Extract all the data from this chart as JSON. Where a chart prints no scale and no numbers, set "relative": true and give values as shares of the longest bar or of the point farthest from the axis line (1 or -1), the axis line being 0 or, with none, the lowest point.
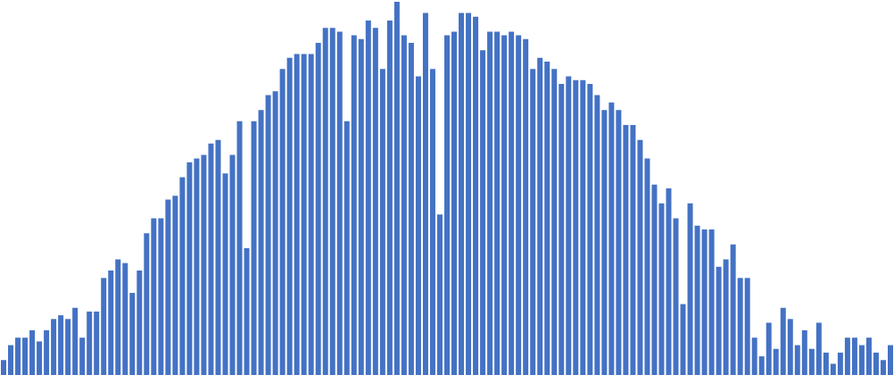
{
  "chart_data": {
    "type": "bar",
    "relative": true,
    "color": "#4472c4",
    "categories": [
      null,
      null,
      null,
      null,
      null,
      null,
      null,
      null,
      null,
      null,
      null,
      null,
      null,
      null,
      null,
      null,
      null,
      null,
      null,
      null,
      null,
      null,
      null,
      null,
      null,
      null,
      null,
      null,
      null,
      null,
      null,
      null,
      null,
      null,
      null,
      null,
      null,
      null,
      null,
      null,
      null,
      null,
      null,
      null,
      null,
      null,
      null,
      null,
      null,
      null,
      null,
      null,
      null,
      null,
      null,
      null,
      null,
      null,
      null,
      null,
      null,
      null,
      null,
      null,
      null,
      null,
      null,
      null,
      null,
      null,
      null,
      null,
      null,
      null,
      null,
      null,
      null,
      null,
      null,
      null,
      null,
      null,
      null,
      null,
      null,
      null,
      null,
      null,
      null,
      null,
      null,
      null,
      null,
      null,
      null,
      null,
      null,
      null,
      null,
      null,
      null,
      null,
      null,
      null,
      null,
      null,
      null,
      null,
      null,
      null,
      null,
      null,
      null,
      null,
      null,
      null,
      null,
      null,
      null,
      null,
      null,
      null,
      null,
      null,
      null
    ],
    "values": [
      0.04,
      0.08,
      0.1,
      0.1,
      0.12,
      0.09,
      0.12,
      0.15,
      0.16,
      0.15,
      0.18,
      0.1,
      0.17,
      0.17,
      0.26,
      0.28,
      0.31,
      0.3,
      0.22,
      0.28,
      0.38,
      0.42,
      0.42,
      0.47,
      0.48,
      0.53,
      0.57,
      0.58,
      0.59,
      0.62,
      0.63,
      0.54,
      0.59,
      0.68,
      0.34,
      0.68,
      0.71,
      0.75,
      0.76,
      0.82,
      0.85,
      0.86,
      0.86,
      0.86,
      0.89,
      0.93,
      0.93,
      0.92,
      0.68,
      0.91,
      0.9,
      0.95,
      0.93,
      0.82,
      0.95,
      1,
      0.91,
      0.89,
      0.8,
      0.97,
      0.82,
      0.43,
      0.91,
      0.92,
      0.97,
      0.97,
      0.96,
      0.87,
      0.92,
      0.92,
      0.91,
      0.92,
      0.91,
      0.9,
      0.82,
      0.85,
      0.84,
      0.82,
      0.78,
      0.8,
      0.79,
      0.79,
      0.78,
      0.75,
      0.71,
      0.73,
      0.71,
      0.67,
      0.67,
      0.63,
      0.58,
      0.51,
      0.46,
      0.5,
      0.42,
      0.19,
      0.46,
      0.4,
      0.39,
      0.39,
      0.29,
      0.31,
      0.35,
      0.26,
      0.26,
      0.1,
      0.05,
      0.14,
      0.07,
      0.18,
      0.15,
      0.08,
      0.12,
      0.07,
      0.14,
      0.06,
      0.03,
      0.06,
      0.1,
      0.1,
      0.08,
      0.1,
      0.06,
      0.04,
      0.08
    ]
  }
}
